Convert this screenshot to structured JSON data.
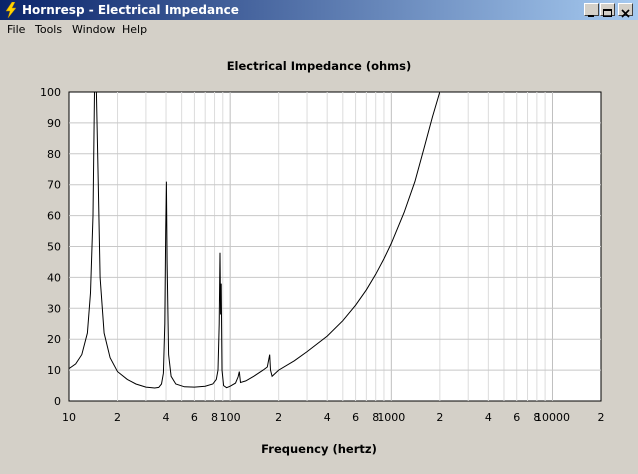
{
  "window": {
    "title": "Hornresp - Electrical Impedance",
    "controls": [
      "minimize",
      "maximize",
      "close"
    ]
  },
  "menu": {
    "items": [
      {
        "label": "File"
      },
      {
        "label": "Tools"
      },
      {
        "label": "Window"
      },
      {
        "label": "Help"
      }
    ]
  },
  "chart_data": {
    "type": "line",
    "title": "Electrical Impedance (ohms)",
    "xlabel": "Frequency (hertz)",
    "ylabel": "",
    "xscale": "log",
    "xlim": [
      10,
      20000
    ],
    "ylim": [
      0,
      100
    ],
    "grid": true,
    "y_ticks": [
      "0",
      "10",
      "20",
      "30",
      "40",
      "50",
      "60",
      "70",
      "80",
      "90",
      "100"
    ],
    "x_ticks": [
      {
        "value": 10,
        "label": "10"
      },
      {
        "value": 20,
        "label": "2"
      },
      {
        "value": 40,
        "label": "4"
      },
      {
        "value": 60,
        "label": "6"
      },
      {
        "value": 80,
        "label": "8"
      },
      {
        "value": 100,
        "label": "100"
      },
      {
        "value": 200,
        "label": "2"
      },
      {
        "value": 400,
        "label": "4"
      },
      {
        "value": 600,
        "label": "6"
      },
      {
        "value": 800,
        "label": "8"
      },
      {
        "value": 1000,
        "label": "1000"
      },
      {
        "value": 2000,
        "label": "2"
      },
      {
        "value": 4000,
        "label": "4"
      },
      {
        "value": 6000,
        "label": "6"
      },
      {
        "value": 8000,
        "label": "8"
      },
      {
        "value": 10000,
        "label": "10000"
      },
      {
        "value": 20000,
        "label": "2"
      }
    ],
    "series": [
      {
        "color": "#000000",
        "points": [
          [
            10,
            10.5
          ],
          [
            11,
            12
          ],
          [
            12,
            15
          ],
          [
            13,
            22
          ],
          [
            13.6,
            35
          ],
          [
            14.1,
            60
          ],
          [
            14.4,
            100
          ],
          [
            14.8,
            100
          ],
          [
            15.2,
            70
          ],
          [
            15.6,
            40
          ],
          [
            16.5,
            22
          ],
          [
            18,
            14
          ],
          [
            20,
            9.5
          ],
          [
            23,
            7
          ],
          [
            26,
            5.5
          ],
          [
            30,
            4.5
          ],
          [
            34,
            4.2
          ],
          [
            36,
            4.4
          ],
          [
            37.5,
            5.5
          ],
          [
            38.5,
            9
          ],
          [
            39.3,
            25
          ],
          [
            39.8,
            55
          ],
          [
            40.2,
            71
          ],
          [
            40.6,
            45
          ],
          [
            41.5,
            15
          ],
          [
            43,
            8
          ],
          [
            46,
            5.5
          ],
          [
            52,
            4.6
          ],
          [
            60,
            4.5
          ],
          [
            70,
            4.8
          ],
          [
            78,
            5.5
          ],
          [
            82,
            7
          ],
          [
            84,
            10
          ],
          [
            85.5,
            25
          ],
          [
            86.5,
            48
          ],
          [
            87.2,
            28
          ],
          [
            88,
            38
          ],
          [
            89,
            10
          ],
          [
            91,
            5
          ],
          [
            95,
            4.3
          ],
          [
            100,
            4.8
          ],
          [
            108,
            5.8
          ],
          [
            112,
            7.8
          ],
          [
            114,
            9.5
          ],
          [
            116,
            6
          ],
          [
            125,
            6.5
          ],
          [
            140,
            8
          ],
          [
            160,
            10
          ],
          [
            170,
            11
          ],
          [
            176,
            15
          ],
          [
            178,
            10
          ],
          [
            182,
            8
          ],
          [
            200,
            10
          ],
          [
            250,
            13
          ],
          [
            300,
            16
          ],
          [
            400,
            21
          ],
          [
            500,
            26
          ],
          [
            600,
            31
          ],
          [
            700,
            36
          ],
          [
            800,
            41
          ],
          [
            900,
            46
          ],
          [
            1000,
            51
          ],
          [
            1200,
            61
          ],
          [
            1400,
            71
          ],
          [
            1600,
            82
          ],
          [
            1800,
            92
          ],
          [
            2000,
            100
          ]
        ]
      }
    ]
  }
}
